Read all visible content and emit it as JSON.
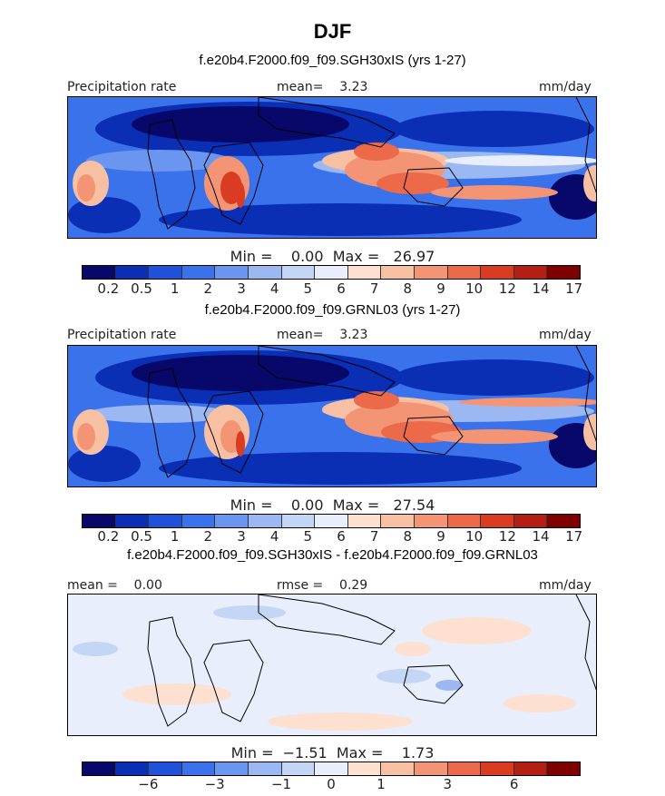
{
  "page_title": "DJF",
  "panels": [
    {
      "title": "f.e20b4.F2000.f09_f09.SGH30xIS (yrs 1-27)",
      "left_label": "Precipitation rate",
      "center_label": "mean=    3.23",
      "right_label": "mm/day",
      "minmax": "Min =    0.00  Max =   26.97"
    },
    {
      "title": "f.e20b4.F2000.f09_f09.GRNL03 (yrs 1-27)",
      "left_label": "Precipitation rate",
      "center_label": "mean=    3.23",
      "right_label": "mm/day",
      "minmax": "Min =    0.00  Max =   27.54"
    },
    {
      "title": "f.e20b4.F2000.f09_f09.SGH30xIS - f.e20b4.F2000.f09_f09.GRNL03",
      "left_label": "mean =    0.00",
      "center_label": "rmse =    0.29",
      "right_label": "mm/day",
      "minmax": "Min =  −1.51  Max =    1.73"
    }
  ],
  "chart_data": [
    {
      "type": "heatmap",
      "title": "f.e20b4.F2000.f09_f09.SGH30xIS (yrs 1-27)",
      "variable": "Precipitation rate",
      "units": "mm/day",
      "mean": 3.23,
      "min": 0.0,
      "max": 26.97,
      "colorbar_ticks": [
        "0.2",
        "0.5",
        "1",
        "2",
        "3",
        "4",
        "5",
        "6",
        "7",
        "8",
        "9",
        "10",
        "12",
        "14",
        "17"
      ]
    },
    {
      "type": "heatmap",
      "title": "f.e20b4.F2000.f09_f09.GRNL03 (yrs 1-27)",
      "variable": "Precipitation rate",
      "units": "mm/day",
      "mean": 3.23,
      "min": 0.0,
      "max": 27.54,
      "colorbar_ticks": [
        "0.2",
        "0.5",
        "1",
        "2",
        "3",
        "4",
        "5",
        "6",
        "7",
        "8",
        "9",
        "10",
        "12",
        "14",
        "17"
      ]
    },
    {
      "type": "heatmap",
      "title": "f.e20b4.F2000.f09_f09.SGH30xIS - f.e20b4.F2000.f09_f09.GRNL03",
      "units": "mm/day",
      "mean": 0.0,
      "rmse": 0.29,
      "min": -1.51,
      "max": 1.73,
      "colorbar_ticks": [
        "−6",
        "−3",
        "−1",
        "0",
        "1",
        "3",
        "6"
      ]
    }
  ],
  "colors": {
    "colorbar": [
      "#08086b",
      "#0a2fb5",
      "#1f52d8",
      "#3a72ec",
      "#6b96ef",
      "#9bb8f2",
      "#c4d6f5",
      "#e8eefb",
      "#fde0cf",
      "#f8c0a3",
      "#f39575",
      "#ec6a49",
      "#da3c22",
      "#b31f12",
      "#7f0000"
    ]
  }
}
